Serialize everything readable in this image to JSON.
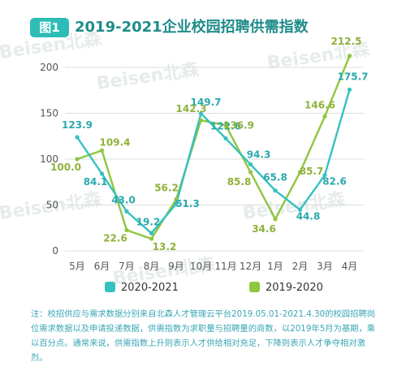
{
  "header": {
    "badge": "图1",
    "title": "2019-2021企业校园招聘供需指数"
  },
  "watermark": "Beisen北森",
  "colors": {
    "series_2020_2021": "#36c0c0",
    "series_2019_2020": "#8ec63f",
    "accent": "#2dbdb6",
    "axis_text": "#555555",
    "grid": "#dddddd"
  },
  "chart_data": {
    "type": "line",
    "title": "2019-2021企业校园招聘供需指数",
    "xlabel": "",
    "ylabel": "",
    "ylim": [
      0,
      220
    ],
    "yticks": [
      0,
      50,
      100,
      150,
      200
    ],
    "grid": true,
    "legend_position": "bottom",
    "categories": [
      "5月",
      "6月",
      "7月",
      "8月",
      "9月",
      "10月",
      "11月",
      "12月",
      "1月",
      "2月",
      "3月",
      "4月"
    ],
    "series": [
      {
        "name": "2020-2021",
        "color": "#36c0c0",
        "values": [
          123.9,
          84.1,
          43.0,
          19.2,
          51.3,
          149.7,
          122.6,
          94.3,
          65.8,
          44.8,
          82.6,
          175.7
        ],
        "labels": [
          "123.9",
          "84.1",
          "43.0",
          "19.2",
          "51.3",
          "149.7",
          "122.6",
          "94.3",
          "65.8",
          "44.8",
          "82.6",
          "175.7"
        ]
      },
      {
        "name": "2019-2020",
        "color": "#8ec63f",
        "values": [
          100.0,
          109.4,
          22.6,
          13.2,
          56.2,
          142.3,
          136.9,
          85.8,
          34.6,
          85.7,
          146.6,
          212.5
        ],
        "labels": [
          "100.0",
          "109.4",
          "22.6",
          "13.2",
          "56.2",
          "142.3",
          "136.9",
          "85.8",
          "34.6",
          "85.7",
          "146.6",
          "212.5"
        ]
      }
    ]
  },
  "note": "注：校招供应与需求数据分别来自北森人才管理云平台2019.05.01-2021.4.30的校园招聘岗位需求数据以及申请投递数据，供需指数为求职量与招聘量的商数，以2019年5月为基期，乘以百分点。通常来说，供需指数上升则表示人才供给相对充足，下降则表示人才争夺相对激烈。"
}
